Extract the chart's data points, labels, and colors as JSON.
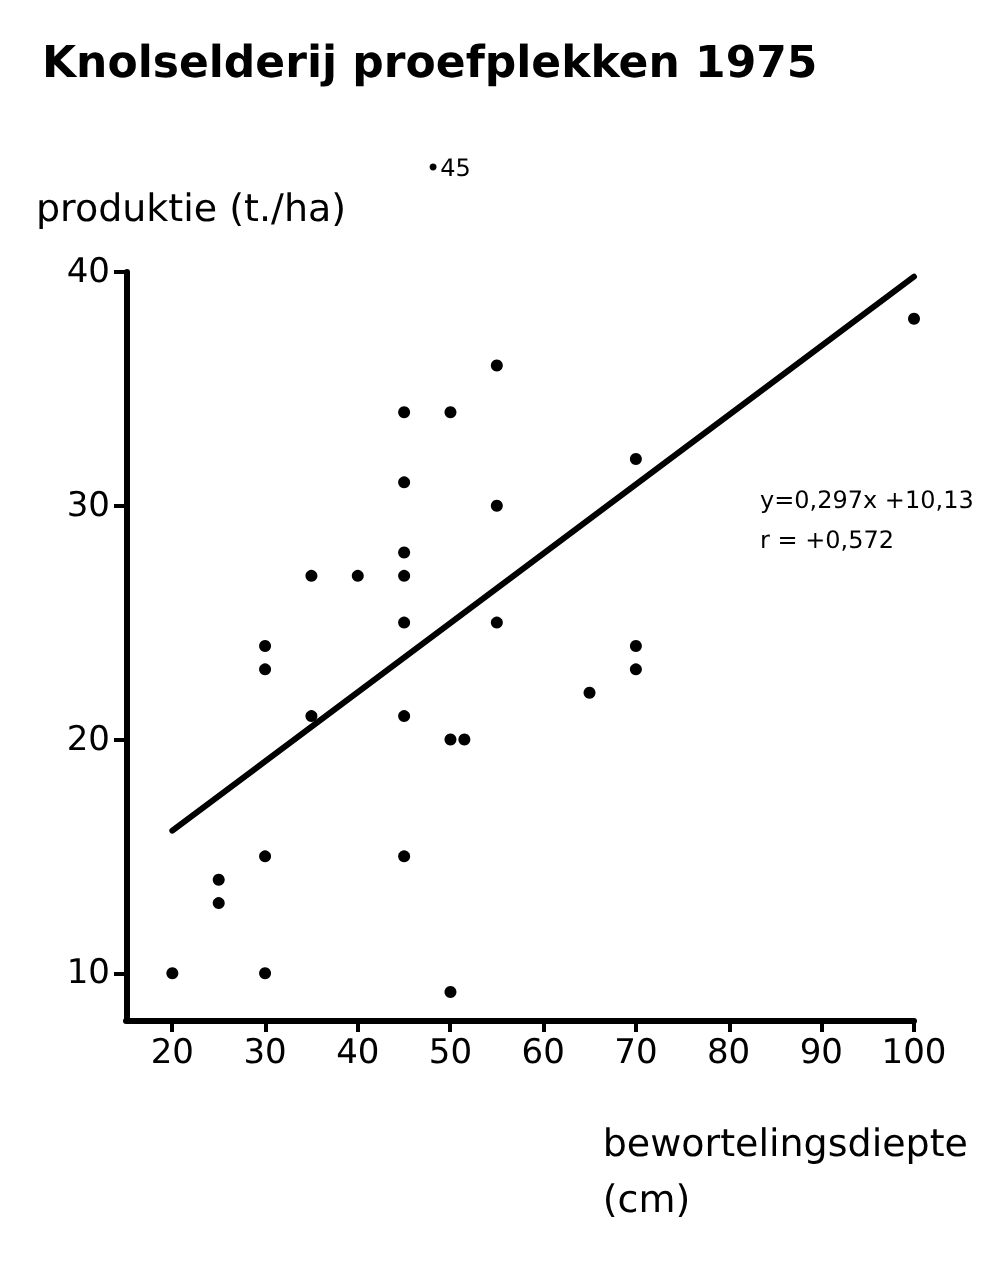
{
  "chart_data": {
    "type": "scatter",
    "title": "Knolselderij proefplekken 1975",
    "ylabel": "produktie (t./ha)",
    "xlabel": "bewortelingsdiepte\n(cm)",
    "xlim": [
      15,
      100
    ],
    "ylim": [
      8,
      40
    ],
    "xticks": [
      20,
      30,
      40,
      50,
      60,
      70,
      80,
      90,
      100
    ],
    "yticks": [
      10,
      20,
      30,
      40
    ],
    "grid": false,
    "marker": "circle",
    "series": [
      {
        "type": "scatter",
        "color": "#000000",
        "x": [
          20,
          25,
          25,
          30,
          30,
          30,
          30,
          35,
          35,
          40,
          45,
          45,
          45,
          45,
          45,
          45,
          45,
          50,
          50,
          51.5,
          50,
          55,
          55,
          55,
          65,
          70,
          70,
          70,
          100
        ],
        "values": [
          10,
          14,
          13,
          15,
          10,
          24,
          23,
          27,
          21,
          27,
          34,
          31,
          28,
          27,
          25,
          21,
          15,
          34,
          20,
          20,
          9.2,
          36,
          30,
          25,
          22,
          32,
          24,
          23,
          38
        ]
      },
      {
        "type": "line",
        "color": "#000000",
        "marker": "none",
        "x": [
          20,
          100
        ],
        "values": [
          16.1,
          39.8
        ]
      }
    ],
    "annotations": [
      "•45",
      "y=0,297x +10,13\nr = +0,572"
    ]
  }
}
